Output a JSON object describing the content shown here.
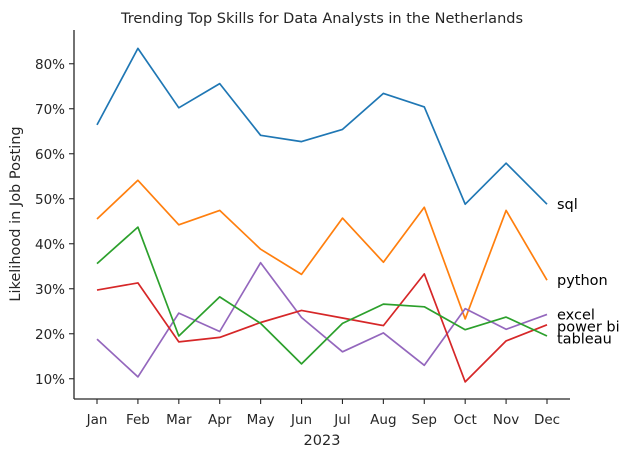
{
  "chart_data": {
    "type": "line",
    "title": "Trending Top Skills for Data Analysts in the Netherlands",
    "xlabel": "2023",
    "ylabel": "Likelihood in Job Posting",
    "categories": [
      "Jan",
      "Feb",
      "Mar",
      "Apr",
      "May",
      "Jun",
      "Jul",
      "Aug",
      "Sep",
      "Oct",
      "Nov",
      "Dec"
    ],
    "ylim": [
      5.5,
      87.5
    ],
    "yticks": [
      10,
      20,
      30,
      40,
      50,
      60,
      70,
      80
    ],
    "ytick_format": "%",
    "grid": false,
    "legend": "none",
    "series": [
      {
        "name": "sql",
        "color": "#1f77b4",
        "values": [
          66.4,
          83.4,
          70.2,
          75.6,
          64.1,
          62.7,
          65.4,
          73.4,
          70.4,
          48.8,
          57.9,
          48.8
        ]
      },
      {
        "name": "python",
        "color": "#ff7f0e",
        "values": [
          45.5,
          54.1,
          44.2,
          47.4,
          38.8,
          33.2,
          45.7,
          35.9,
          48.1,
          23.3,
          47.4,
          31.9
        ]
      },
      {
        "name": "excel",
        "color": "#9467bd",
        "values": [
          18.8,
          10.4,
          24.6,
          20.5,
          35.8,
          23.6,
          16.0,
          20.2,
          13.0,
          25.6,
          21.0,
          24.3
        ]
      },
      {
        "name": "power bi",
        "color": "#d62728",
        "values": [
          29.7,
          31.3,
          18.2,
          19.2,
          22.5,
          25.2,
          23.5,
          21.8,
          33.3,
          9.3,
          18.4,
          22.0
        ]
      },
      {
        "name": "tableau",
        "color": "#2ca02c",
        "values": [
          35.6,
          43.7,
          19.5,
          28.2,
          22.3,
          13.3,
          22.3,
          26.6,
          26.0,
          20.9,
          23.7,
          19.5
        ]
      }
    ]
  }
}
